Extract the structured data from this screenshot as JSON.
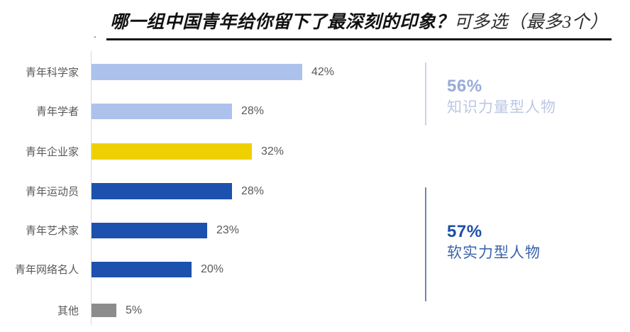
{
  "title": {
    "main": "哪一组中国青年给你留下了最深刻的印象？",
    "note": "可多选（最多3个）",
    "leading_dot": "."
  },
  "chart_data": {
    "type": "bar",
    "orientation": "horizontal",
    "title": "哪一组中国青年给你留下了最深刻的印象？可多选（最多3个）",
    "categories": [
      "青年科学家",
      "青年学者",
      "青年企业家",
      "青年运动员",
      "青年艺术家",
      "青年网络名人",
      "其他"
    ],
    "values": [
      42,
      28,
      32,
      28,
      23,
      20,
      5
    ],
    "value_labels": [
      "42%",
      "28%",
      "32%",
      "28%",
      "23%",
      "20%",
      "5%"
    ],
    "bar_colors": [
      "#ACC2EC",
      "#ACC2EC",
      "#EFD000",
      "#1C51AE",
      "#1C51AE",
      "#1C51AE",
      "#8C8C8C"
    ],
    "xlim": [
      0,
      45
    ],
    "grid": false,
    "legend": "none",
    "groups": [
      {
        "percent": "56%",
        "label": "知识力量型人物",
        "covers": [
          "青年科学家",
          "青年学者"
        ]
      },
      {
        "percent": "57%",
        "label": "软实力型人物",
        "covers": [
          "青年运动员",
          "青年艺术家",
          "青年网络名人"
        ]
      }
    ]
  },
  "annotations": [
    {
      "percent": "56%",
      "label": "知识力量型人物",
      "percent_color": "#98ABD8",
      "label_color": "#BCC7E3",
      "bracket_color": "#C9D3EA"
    },
    {
      "percent": "57%",
      "label": "软实力型人物",
      "percent_color": "#1E4FA6",
      "label_color": "#3A63AB",
      "bracket_color": "#7186A9"
    }
  ],
  "colors": {
    "light_blue_bar": "#ACC2EC",
    "yellow_bar": "#EFD000",
    "dark_blue_bar": "#1C51AE",
    "gray_bar": "#8C8C8C",
    "axis_line": "#D9D9D9",
    "label_text": "#595959",
    "title_text": "#111111"
  }
}
